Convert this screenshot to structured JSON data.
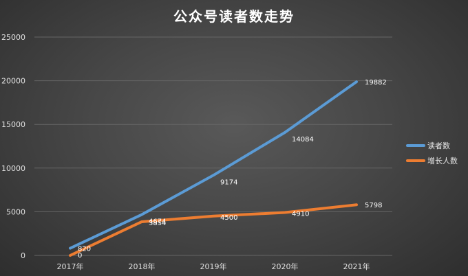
{
  "chart_data": {
    "type": "line",
    "title": "公众号读者数走势",
    "categories": [
      "2017年",
      "2018年",
      "2019年",
      "2020年",
      "2021年"
    ],
    "series": [
      {
        "name": "读者数",
        "values": [
          820,
          4674,
          9174,
          14084,
          19882
        ],
        "color": "#5b9bd5"
      },
      {
        "name": "增长人数",
        "values": [
          0,
          3854,
          4500,
          4910,
          5798
        ],
        "color": "#ed7d31"
      }
    ],
    "ylim": [
      0,
      25000
    ],
    "yticks": [
      0,
      5000,
      10000,
      15000,
      20000,
      25000
    ],
    "grid": true,
    "legend": "right"
  }
}
